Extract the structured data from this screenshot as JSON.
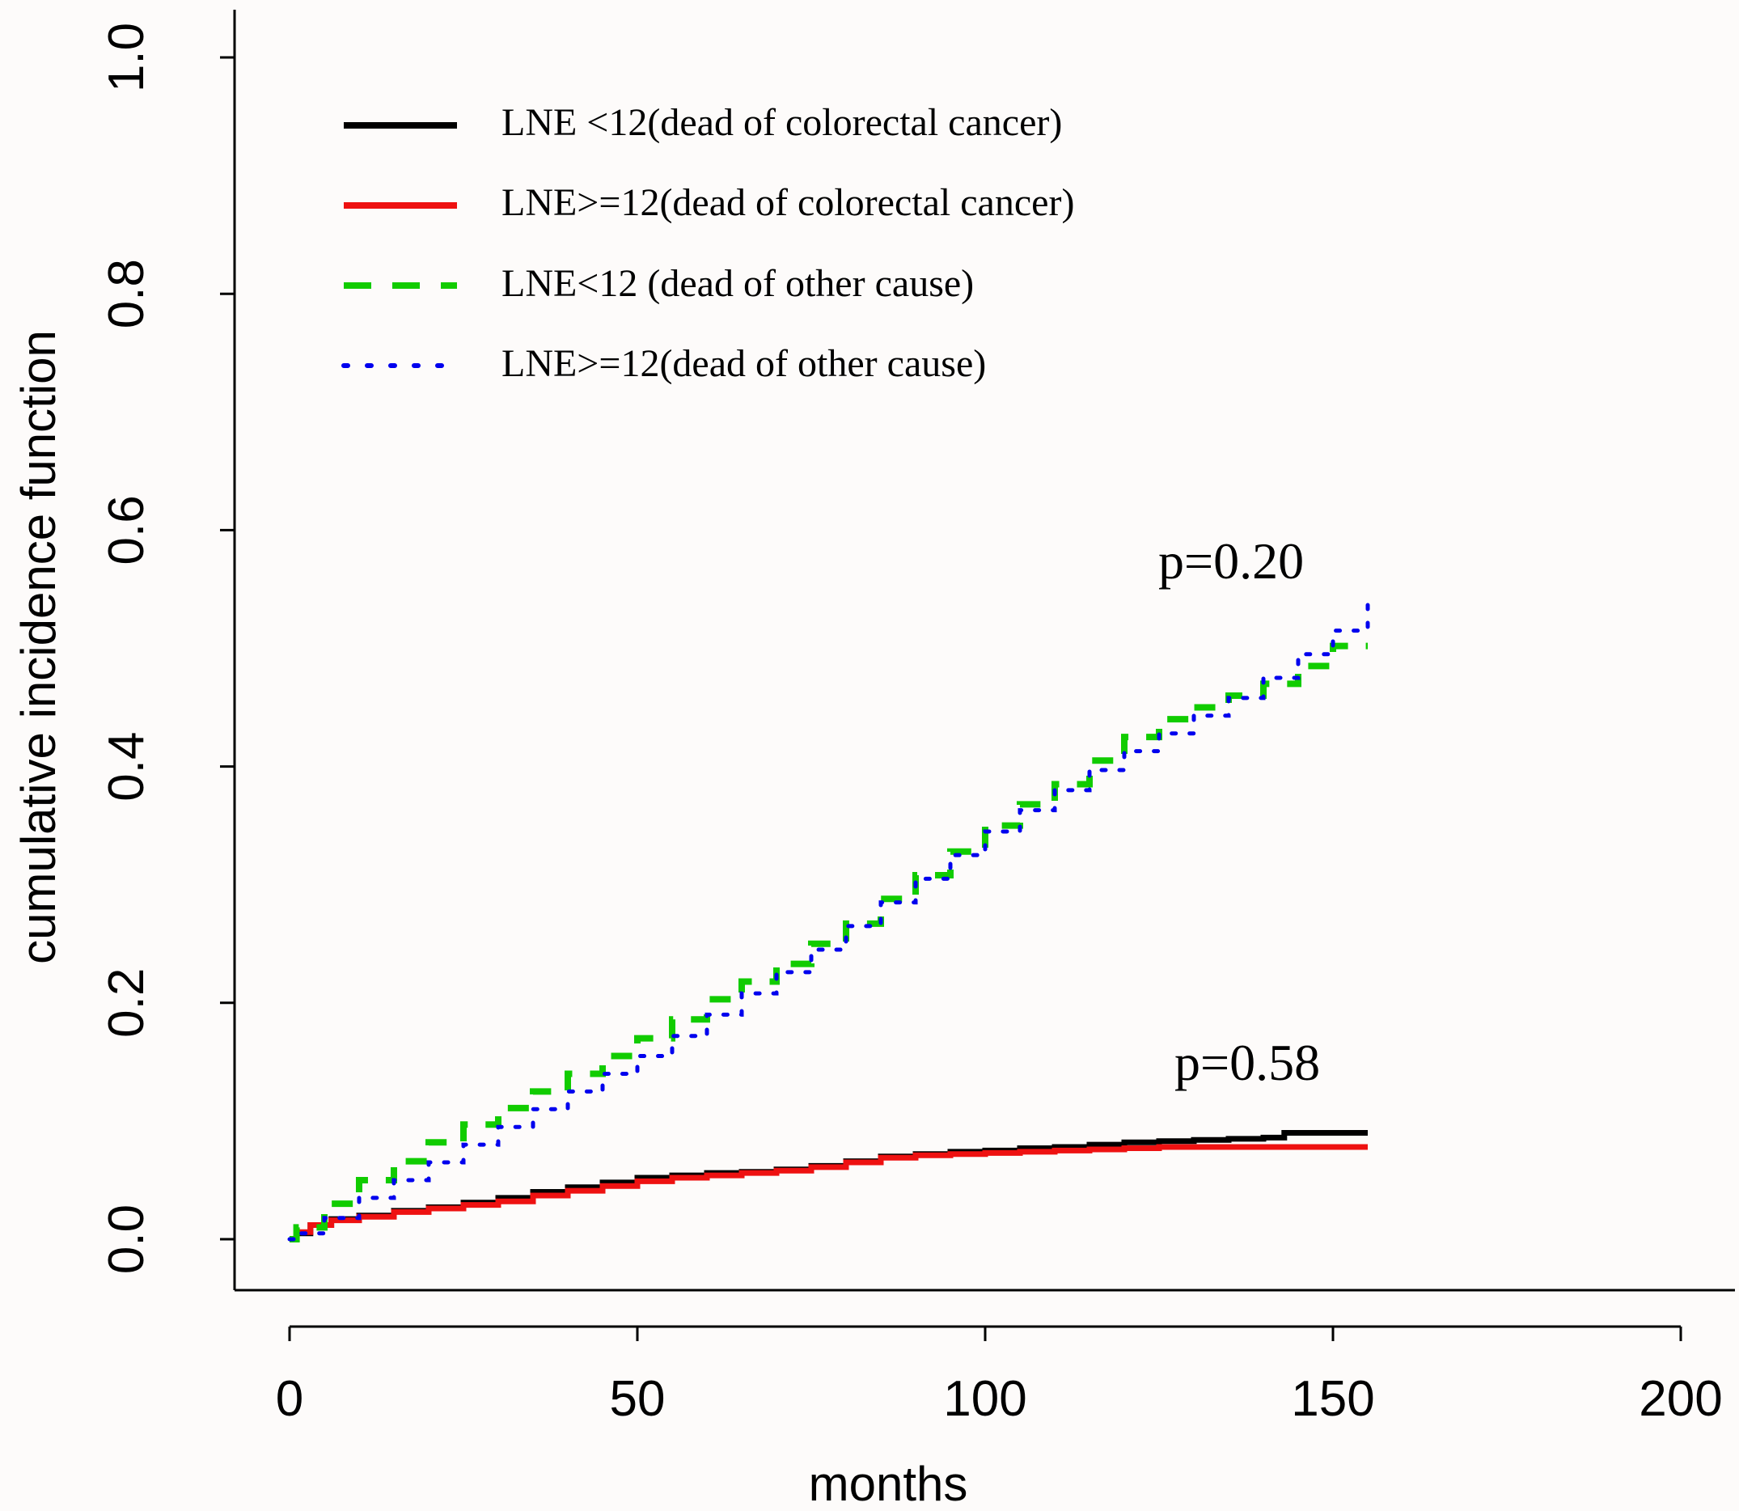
{
  "colors": {
    "background": "#fdfbfa",
    "axis": "#000000",
    "lne_lt12_crc": "#000000",
    "lne_ge12_crc": "#ee1111",
    "lne_lt12_other": "#11cc00",
    "lne_ge12_other": "#0000ee"
  },
  "chart_data": {
    "type": "line",
    "title": "",
    "xlabel": "months",
    "ylabel": "cumulative incidence function",
    "xlim": [
      0,
      200
    ],
    "ylim": [
      0,
      1
    ],
    "xticks": [
      "0",
      "50",
      "100",
      "150",
      "200"
    ],
    "yticks": [
      "0.0",
      "0.2",
      "0.4",
      "0.6",
      "0.8",
      "1.0"
    ],
    "xtick_values": [
      0,
      50,
      100,
      150,
      200
    ],
    "ytick_values": [
      0,
      0.2,
      0.4,
      0.6,
      0.8,
      1.0
    ],
    "grid": false,
    "legend_position": "top-left",
    "series": [
      {
        "name": "LNE <12(dead of  colorectal cancer)",
        "color": "#000000",
        "style": "solid",
        "x": [
          0,
          1,
          3,
          6,
          10,
          15,
          20,
          25,
          30,
          35,
          40,
          45,
          50,
          55,
          60,
          65,
          70,
          75,
          80,
          85,
          90,
          95,
          100,
          105,
          110,
          115,
          120,
          125,
          130,
          135,
          140,
          143,
          145,
          150,
          155
        ],
        "y": [
          0,
          0.005,
          0.012,
          0.017,
          0.02,
          0.024,
          0.027,
          0.031,
          0.035,
          0.04,
          0.044,
          0.048,
          0.052,
          0.054,
          0.056,
          0.057,
          0.059,
          0.062,
          0.066,
          0.07,
          0.072,
          0.074,
          0.075,
          0.077,
          0.078,
          0.08,
          0.082,
          0.083,
          0.084,
          0.085,
          0.086,
          0.09,
          0.09,
          0.09,
          0.09
        ]
      },
      {
        "name": "LNE>=12(dead of  colorectal cancer)",
        "color": "#ee1111",
        "style": "solid",
        "x": [
          0,
          1,
          3,
          6,
          10,
          15,
          20,
          25,
          30,
          35,
          40,
          45,
          50,
          55,
          60,
          65,
          70,
          75,
          80,
          85,
          90,
          95,
          100,
          105,
          110,
          115,
          120,
          125,
          130,
          135,
          140,
          145,
          150,
          155
        ],
        "y": [
          0,
          0.006,
          0.012,
          0.016,
          0.019,
          0.023,
          0.026,
          0.029,
          0.032,
          0.037,
          0.041,
          0.045,
          0.049,
          0.052,
          0.054,
          0.056,
          0.058,
          0.061,
          0.065,
          0.069,
          0.071,
          0.072,
          0.073,
          0.074,
          0.075,
          0.076,
          0.077,
          0.078,
          0.078,
          0.078,
          0.078,
          0.078,
          0.078,
          0.078
        ]
      },
      {
        "name": "LNE<12 (dead of other cause)",
        "color": "#11cc00",
        "style": "dashed",
        "x": [
          0,
          1,
          5,
          10,
          15,
          20,
          25,
          30,
          35,
          40,
          45,
          50,
          55,
          60,
          65,
          70,
          75,
          80,
          85,
          90,
          95,
          100,
          105,
          110,
          115,
          120,
          125,
          130,
          135,
          140,
          145,
          150,
          155
        ],
        "y": [
          0,
          0.01,
          0.03,
          0.05,
          0.066,
          0.082,
          0.097,
          0.111,
          0.125,
          0.14,
          0.155,
          0.17,
          0.186,
          0.203,
          0.218,
          0.233,
          0.25,
          0.267,
          0.288,
          0.308,
          0.328,
          0.35,
          0.368,
          0.385,
          0.405,
          0.425,
          0.44,
          0.45,
          0.46,
          0.47,
          0.485,
          0.502,
          0.502
        ]
      },
      {
        "name": "LNE>=12(dead of other cause)",
        "color": "#0000ee",
        "style": "dotted",
        "x": [
          0,
          1,
          5,
          10,
          15,
          20,
          25,
          30,
          35,
          40,
          45,
          50,
          55,
          60,
          65,
          70,
          75,
          80,
          85,
          90,
          95,
          100,
          105,
          110,
          115,
          120,
          125,
          130,
          135,
          140,
          145,
          150,
          155
        ],
        "y": [
          0,
          0.005,
          0.018,
          0.035,
          0.05,
          0.065,
          0.08,
          0.095,
          0.11,
          0.125,
          0.14,
          0.155,
          0.172,
          0.19,
          0.208,
          0.226,
          0.245,
          0.265,
          0.285,
          0.305,
          0.325,
          0.345,
          0.363,
          0.38,
          0.397,
          0.413,
          0.428,
          0.443,
          0.458,
          0.475,
          0.495,
          0.515,
          0.545
        ]
      }
    ],
    "annotations": [
      {
        "text": "p=0.20",
        "x": 147,
        "y": 0.57
      },
      {
        "text": "p=0.58",
        "x": 148,
        "y": 0.125
      }
    ]
  }
}
